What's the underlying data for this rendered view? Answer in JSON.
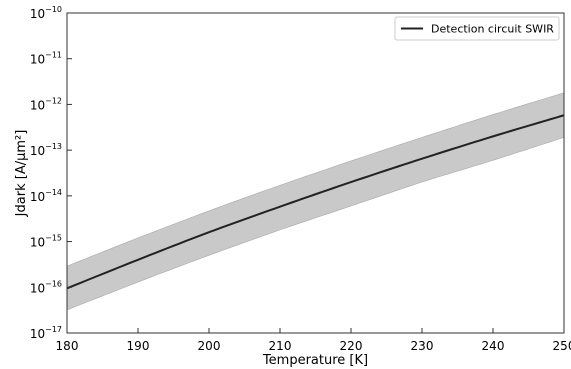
{
  "chart_data": {
    "type": "line",
    "xlabel": "Temperature [K]",
    "ylabel": "Jdark [A/μm²]",
    "xlim": [
      180,
      250
    ],
    "ylim": [
      1e-17,
      1e-10
    ],
    "y_scale": "log",
    "grid": false,
    "legend_placement": "top-right",
    "x_ticks": [
      {
        "value": 180,
        "label": "180"
      },
      {
        "value": 190,
        "label": "190"
      },
      {
        "value": 200,
        "label": "200"
      },
      {
        "value": 210,
        "label": "210"
      },
      {
        "value": 220,
        "label": "220"
      },
      {
        "value": 230,
        "label": "230"
      },
      {
        "value": 240,
        "label": "240"
      },
      {
        "value": 250,
        "label": "250"
      }
    ],
    "y_ticks": [
      {
        "value": 1e-17,
        "base": "10",
        "exp": "−17"
      },
      {
        "value": 1e-16,
        "base": "10",
        "exp": "−16"
      },
      {
        "value": 1e-15,
        "base": "10",
        "exp": "−15"
      },
      {
        "value": 1e-14,
        "base": "10",
        "exp": "−14"
      },
      {
        "value": 1e-13,
        "base": "10",
        "exp": "−13"
      },
      {
        "value": 1e-12,
        "base": "10",
        "exp": "−12"
      },
      {
        "value": 1e-11,
        "base": "10",
        "exp": "−11"
      },
      {
        "value": 1e-10,
        "base": "10",
        "exp": "−10"
      }
    ],
    "series": [
      {
        "name": "Detection circuit SWIR",
        "color": "#222222",
        "x": [
          180,
          190,
          200,
          210,
          220,
          230,
          240,
          250
        ],
        "y": [
          9.5e-17,
          4e-16,
          1.6e-15,
          5.8e-15,
          2e-14,
          6.5e-14,
          2e-13,
          5.8e-13
        ]
      }
    ],
    "band": {
      "color": "#c9c9c9",
      "x": [
        180,
        190,
        200,
        210,
        220,
        230,
        240,
        250
      ],
      "y_low": [
        3.2e-17,
        1.3e-16,
        5e-16,
        1.8e-15,
        6e-15,
        2e-14,
        6e-14,
        1.9e-13
      ],
      "y_high": [
        2.9e-16,
        1.2e-15,
        4.7e-15,
        1.7e-14,
        5.8e-14,
        1.9e-13,
        6e-13,
        1.8e-12
      ]
    }
  }
}
